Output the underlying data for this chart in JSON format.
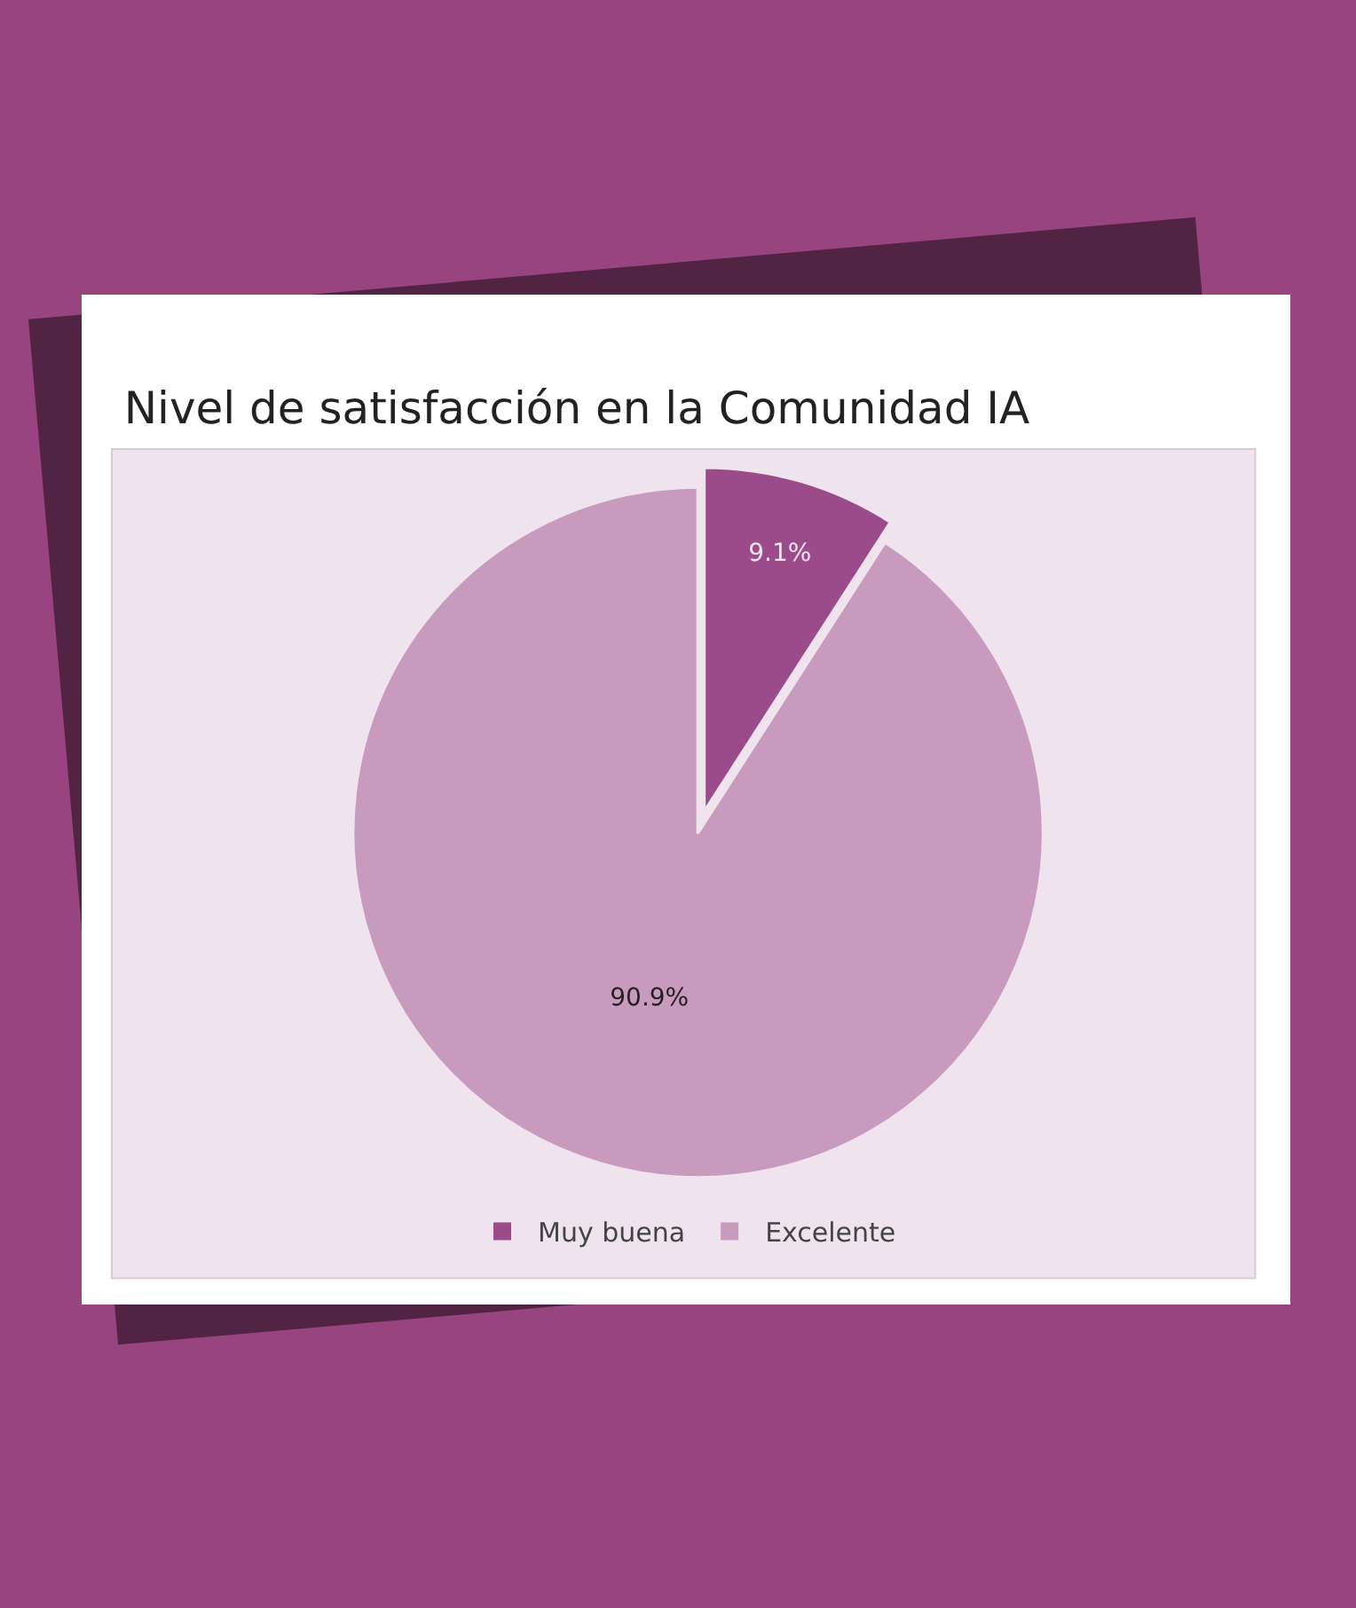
{
  "chart_data": {
    "type": "pie",
    "title": "Nivel de satisfacción en la Comunidad IA",
    "categories": [
      "Muy buena",
      "Excelente"
    ],
    "values": [
      9.1,
      90.9
    ],
    "colors": [
      "#9b4a8a",
      "#c89abd"
    ],
    "value_labels": [
      "9.1%",
      "90.9%"
    ],
    "legend": "bottom"
  }
}
